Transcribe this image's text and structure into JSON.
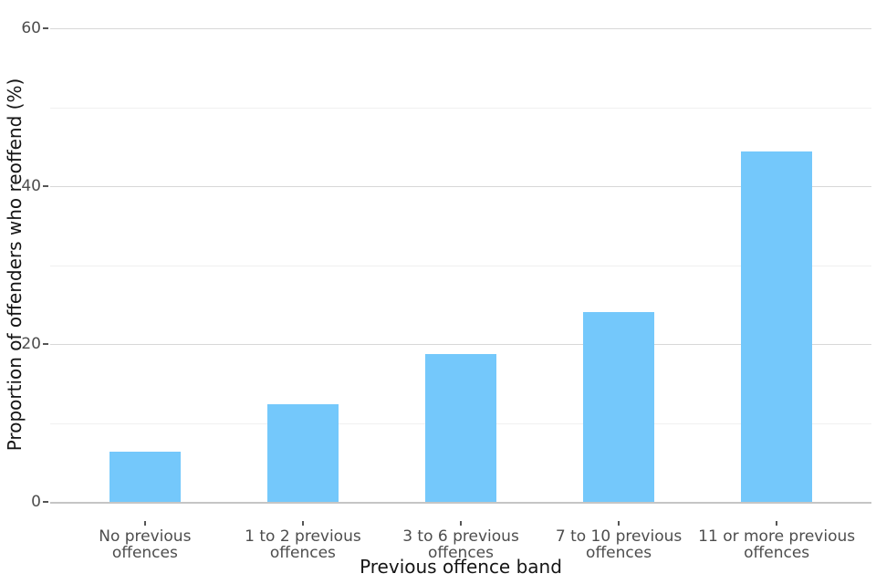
{
  "chart_data": {
    "type": "bar",
    "title": "",
    "xlabel": "Previous offence band",
    "ylabel": "Proportion of offenders who reoffend (%)",
    "categories": [
      "No previous offences",
      "1 to 2 previous offences",
      "3 to 6 previous offences",
      "7 to 10 previous offences",
      "11 or more previous offences"
    ],
    "categories_wrapped": [
      [
        "No previous",
        "offences"
      ],
      [
        "1 to 2 previous",
        "offences"
      ],
      [
        "3 to 6 previous",
        "offences"
      ],
      [
        "7 to 10 previous",
        "offences"
      ],
      [
        "11 or more previous",
        "offences"
      ]
    ],
    "values": [
      6.4,
      12.4,
      18.7,
      24.0,
      44.4
    ],
    "ylim": [
      0,
      60
    ],
    "yticks": [
      0,
      20,
      40,
      60
    ],
    "minor_yticks": [
      10,
      30,
      50
    ],
    "bar_color": "#74c8fb",
    "major_grid_color": "#d8d8d8",
    "minor_grid_color": "#f0f0f0",
    "baseline_color": "#c5c5c5",
    "tick_label_color": "#4d4d4d",
    "axis_title_color": "#151515",
    "grid": "horizontal, major and minor, no vertical",
    "legend": "none",
    "background": "#ffffff"
  }
}
